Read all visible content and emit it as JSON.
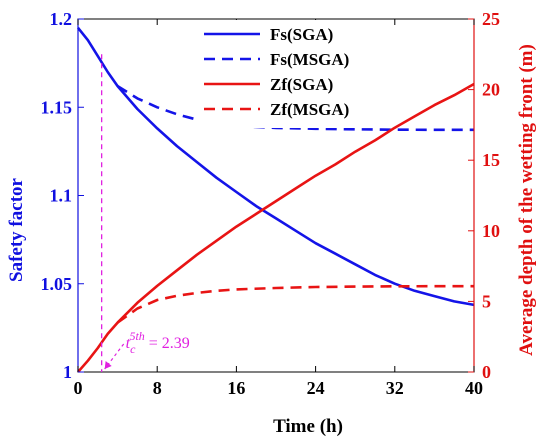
{
  "chart_data": {
    "type": "line",
    "xlabel": "Time (h)",
    "ylabel_left": "Safety factor",
    "ylabel_right": "Average depth of the wetting front (m)",
    "xlim": [
      0,
      40
    ],
    "ylim_left": [
      1.0,
      1.2
    ],
    "ylim_right": [
      0,
      25
    ],
    "x_ticks": [
      0,
      8,
      16,
      24,
      32,
      40
    ],
    "y_left_ticks": [
      "1",
      "1.05",
      "1.1",
      "1.15",
      "1.2"
    ],
    "y_right_ticks": [
      0,
      5,
      10,
      15,
      20,
      25
    ],
    "legend_position": "top-center",
    "colors": {
      "left_axis": "#1010e0",
      "right_axis": "#e01010",
      "annotation": "#e020e0"
    },
    "series": [
      {
        "name": "Fs(SGA)",
        "axis": "left",
        "style": "solid",
        "color": "#1414e8",
        "x": [
          0,
          1,
          2,
          3,
          4,
          6,
          8,
          10,
          12,
          14,
          16,
          18,
          20,
          22,
          24,
          26,
          28,
          30,
          32,
          34,
          36,
          38,
          40
        ],
        "y": [
          1.195,
          1.188,
          1.179,
          1.17,
          1.162,
          1.149,
          1.138,
          1.128,
          1.119,
          1.11,
          1.102,
          1.094,
          1.087,
          1.08,
          1.073,
          1.067,
          1.061,
          1.055,
          1.05,
          1.046,
          1.043,
          1.04,
          1.038
        ]
      },
      {
        "name": "Fs(MSGA)",
        "axis": "left",
        "style": "dashed",
        "color": "#1414e8",
        "x": [
          4,
          6,
          8,
          10,
          12,
          14,
          16,
          18,
          20,
          24,
          28,
          32,
          36,
          40
        ],
        "y": [
          1.162,
          1.155,
          1.15,
          1.146,
          1.143,
          1.141,
          1.1395,
          1.1388,
          1.1383,
          1.1378,
          1.1375,
          1.1373,
          1.1372,
          1.1372
        ]
      },
      {
        "name": "Zf(SGA)",
        "axis": "right",
        "style": "solid",
        "color": "#e81414",
        "x": [
          0,
          1,
          2,
          3,
          4,
          6,
          8,
          10,
          12,
          14,
          16,
          18,
          20,
          22,
          24,
          26,
          28,
          30,
          32,
          34,
          36,
          38,
          40
        ],
        "y": [
          0,
          0.8,
          1.7,
          2.7,
          3.5,
          4.9,
          6.1,
          7.2,
          8.3,
          9.3,
          10.3,
          11.2,
          12.1,
          13.0,
          13.9,
          14.7,
          15.6,
          16.4,
          17.3,
          18.1,
          18.9,
          19.6,
          20.4
        ]
      },
      {
        "name": "Zf(MSGA)",
        "axis": "right",
        "style": "dashed",
        "color": "#e81414",
        "x": [
          4,
          6,
          8,
          10,
          12,
          14,
          16,
          20,
          24,
          28,
          32,
          36,
          40
        ],
        "y": [
          3.5,
          4.5,
          5.1,
          5.4,
          5.6,
          5.75,
          5.85,
          5.95,
          6.02,
          6.05,
          6.07,
          6.08,
          6.08
        ]
      }
    ],
    "annotation": {
      "label": "t_c^{5th} = 2.39",
      "base": "t",
      "sub": "c",
      "sup": "5th",
      "value_text": "= 2.39",
      "x": 2.39
    }
  }
}
